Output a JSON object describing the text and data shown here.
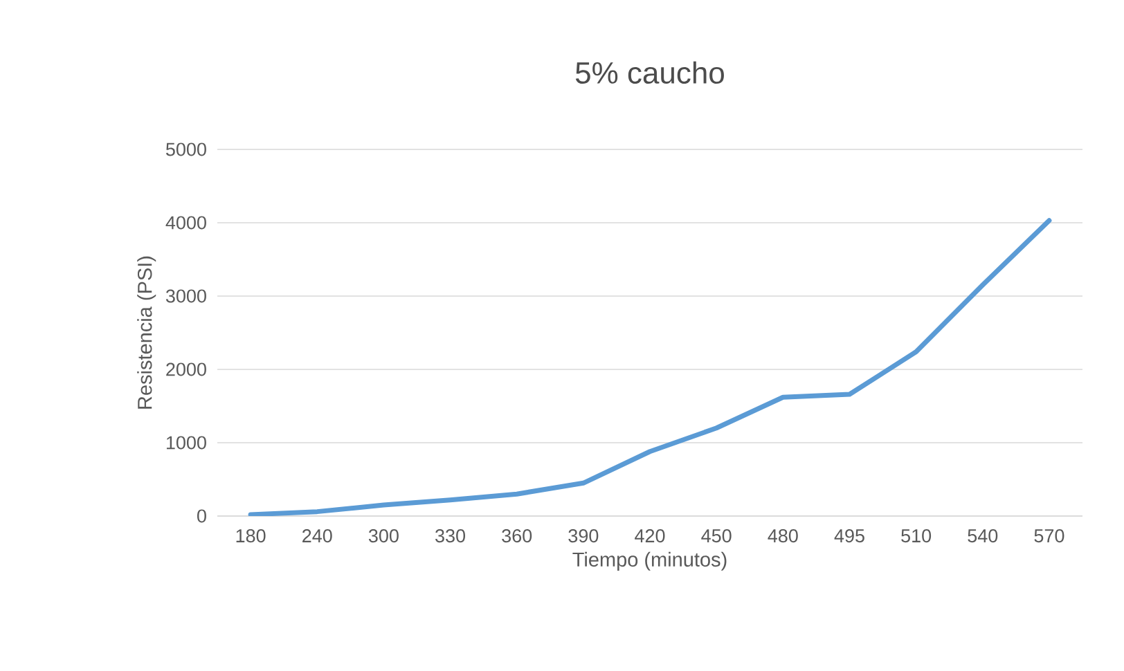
{
  "chart_data": {
    "type": "line",
    "title": "5% caucho",
    "xlabel": "Tiempo (minutos)",
    "ylabel": "Resistencia (PSI)",
    "categories": [
      "180",
      "240",
      "300",
      "330",
      "360",
      "390",
      "420",
      "450",
      "480",
      "495",
      "510",
      "540",
      "570"
    ],
    "series": [
      {
        "color": "#5b9bd5",
        "values": [
          20,
          60,
          150,
          220,
          300,
          450,
          880,
          1200,
          1620,
          1660,
          2240,
          3150,
          4030
        ]
      }
    ],
    "ylim": [
      0,
      5000
    ],
    "yticks": [
      0,
      1000,
      2000,
      3000,
      4000,
      5000
    ],
    "grid": "y",
    "legend": false,
    "marker": "none",
    "line_style": "solid"
  }
}
